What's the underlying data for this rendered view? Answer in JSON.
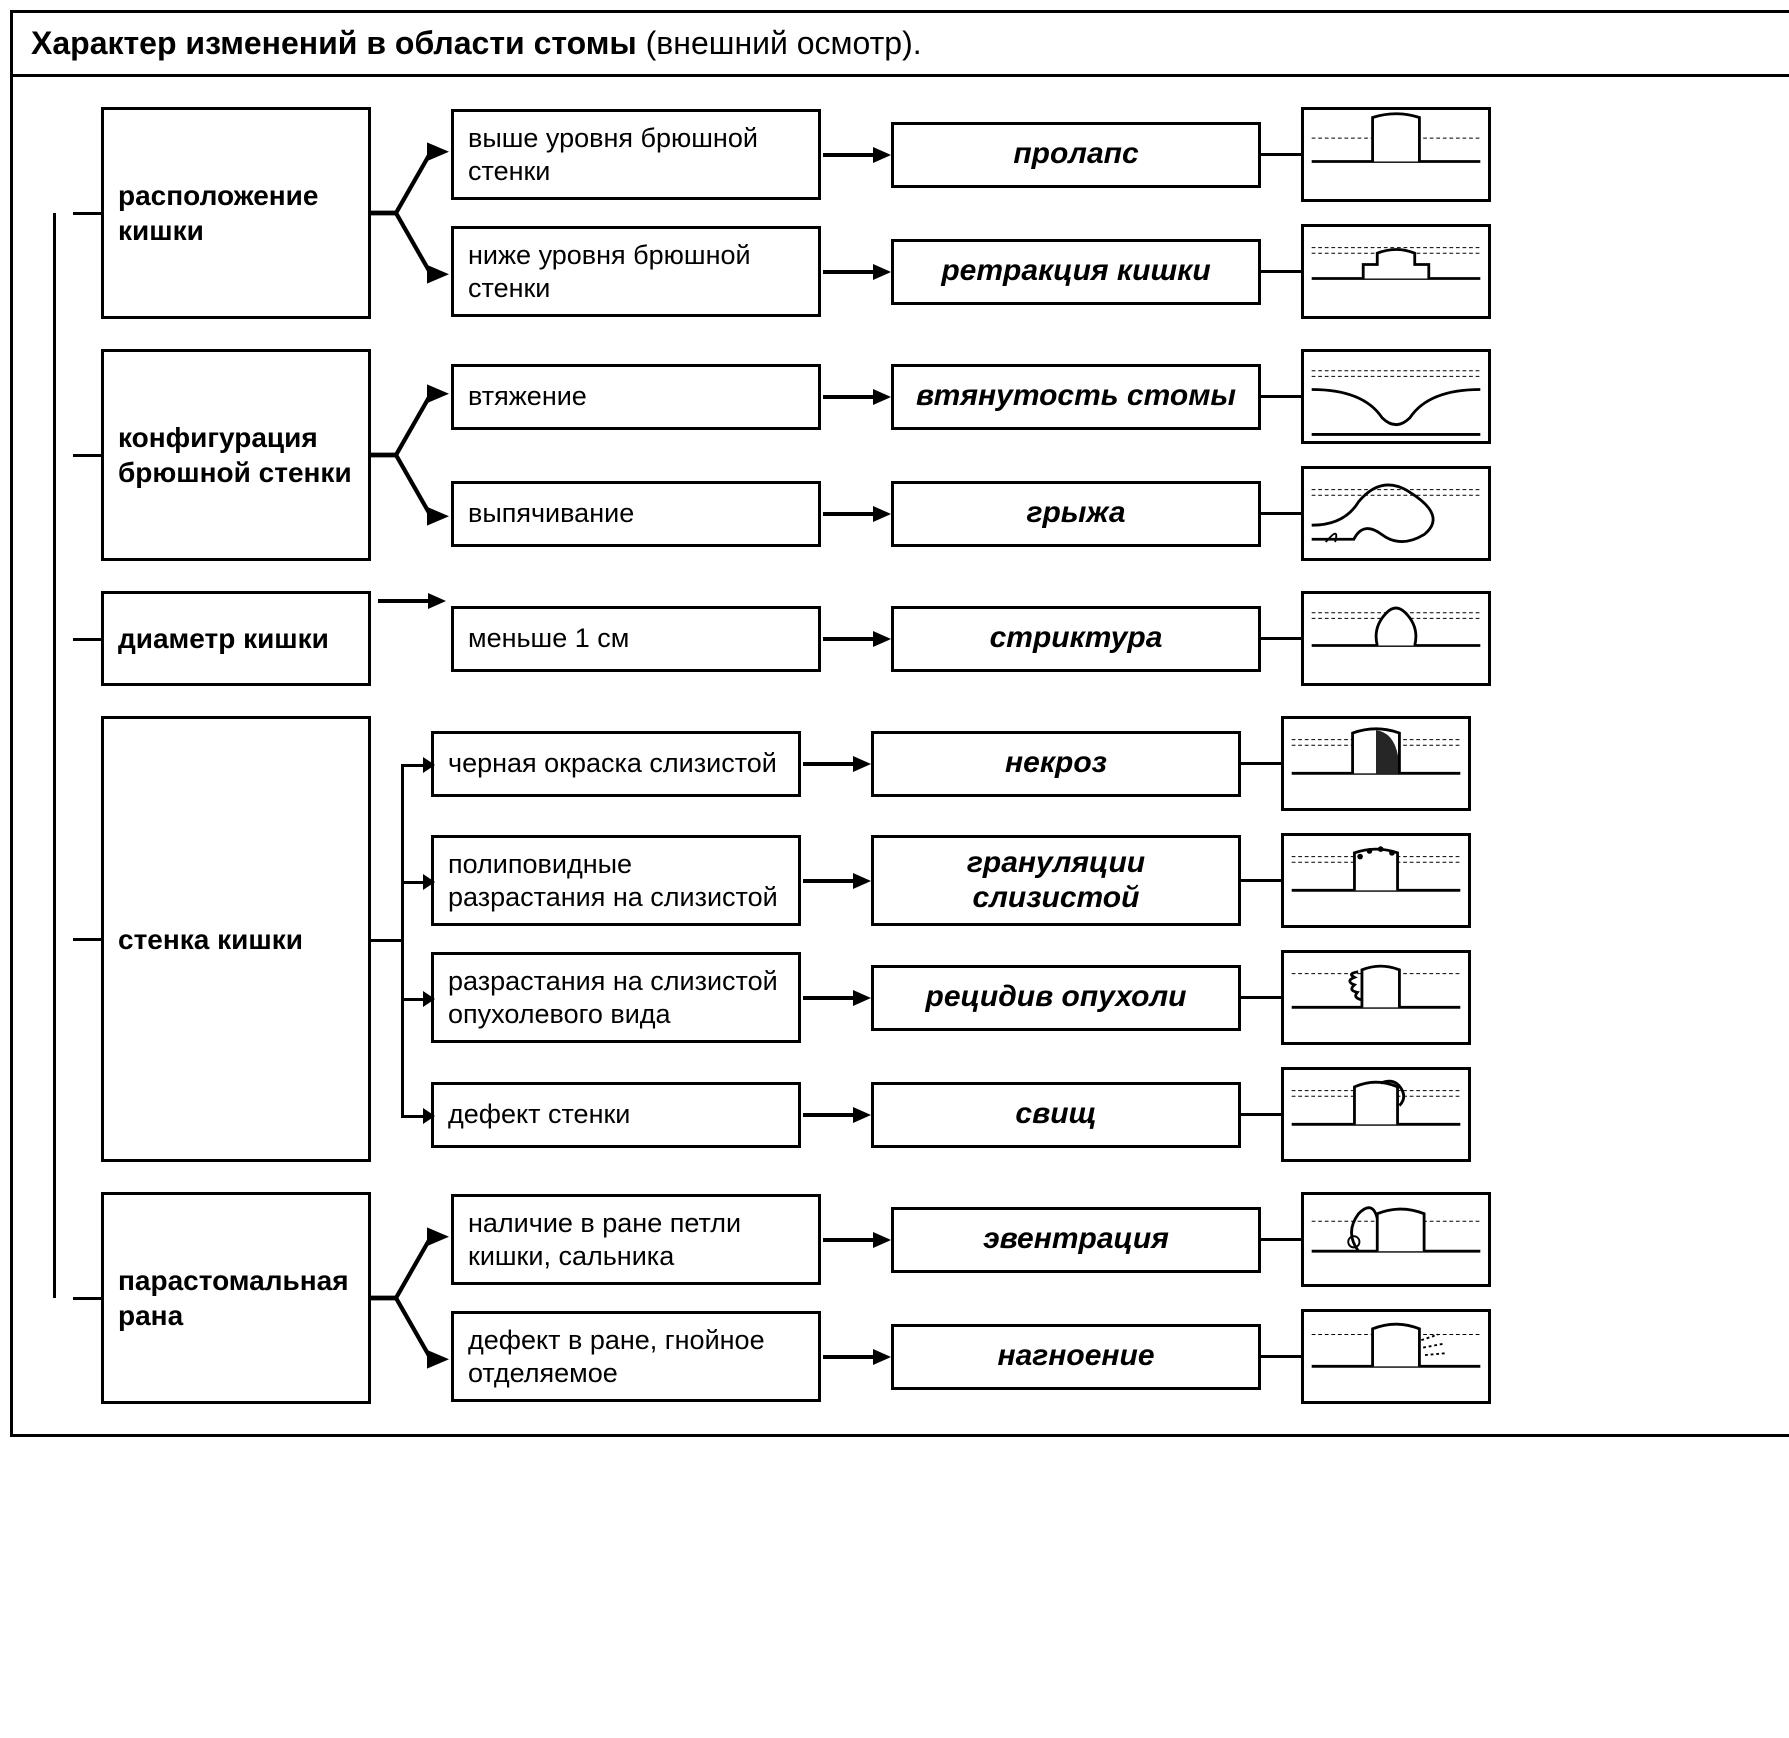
{
  "header": {
    "title_bold": "Характер изменений в области стомы",
    "title_paren": "(внешний осмотр)."
  },
  "styling": {
    "border_color": "#000000",
    "border_width": 3,
    "background": "#ffffff",
    "font_family": "Arial",
    "header_fontsize": 32,
    "col1_fontsize": 28,
    "col2_fontsize": 27,
    "col3_fontsize": 30,
    "col1_weight": 700,
    "col3_weight": 700,
    "col3_style": "italic",
    "box_widths": {
      "col1": 270,
      "col2": 370,
      "col3": 370,
      "thumb": 190
    },
    "thumb_height": 95,
    "row_gap": 22,
    "section_gap": 30
  },
  "diagram": {
    "type": "flowchart",
    "spine": true,
    "sections": [
      {
        "label": "расположение кишки",
        "connector": "fan2",
        "children": [
          {
            "observation": "выше уровня брюшной стенки",
            "diagnosis": "пролапс",
            "icon": "prolapse"
          },
          {
            "observation": "ниже уровня брюшной стенки",
            "diagnosis": "ретракция кишки",
            "icon": "retraction"
          }
        ]
      },
      {
        "label": "конфигурация брюшной стенки",
        "connector": "fan2",
        "children": [
          {
            "observation": "втяжение",
            "diagnosis": "втянутость стомы",
            "icon": "indrawn"
          },
          {
            "observation": "выпячивание",
            "diagnosis": "грыжа",
            "icon": "hernia"
          }
        ]
      },
      {
        "label": "диаметр кишки",
        "connector": "arrow1",
        "children": [
          {
            "observation": "меньше 1 см",
            "diagnosis": "стриктура",
            "icon": "stricture"
          }
        ]
      },
      {
        "label": "стенка кишки",
        "connector": "bracket4",
        "children": [
          {
            "observation": "черная окраска слизистой",
            "diagnosis": "некроз",
            "icon": "necrosis"
          },
          {
            "observation": "полиповидные разрастания на слизистой",
            "diagnosis": "грануляции слизистой",
            "icon": "granulation"
          },
          {
            "observation": "разрастания на слизистой опухолевого вида",
            "diagnosis": "рецидив опухоли",
            "icon": "tumor"
          },
          {
            "observation": "дефект стенки",
            "diagnosis": "свищ",
            "icon": "fistula"
          }
        ]
      },
      {
        "label": "парастомальная рана",
        "connector": "fan2",
        "children": [
          {
            "observation": "наличие в ране петли кишки, сальника",
            "diagnosis": "эвентрация",
            "icon": "eventration"
          },
          {
            "observation": "дефект в ране, гнойное отделяемое",
            "diagnosis": "нагноение",
            "icon": "suppuration"
          }
        ]
      }
    ]
  }
}
